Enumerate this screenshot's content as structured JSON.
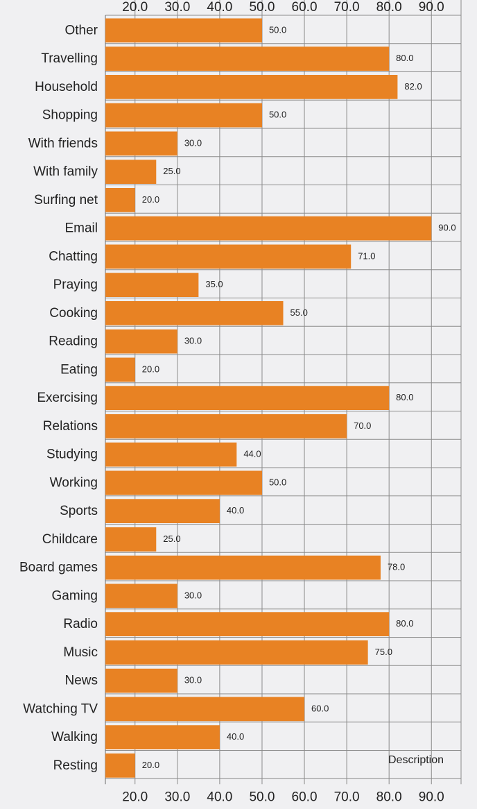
{
  "chart_data": {
    "type": "bar",
    "orientation": "horizontal",
    "categories": [
      "Other",
      "Travelling",
      "Household",
      "Shopping",
      "With friends",
      "With family",
      "Surfing net",
      "Email",
      "Chatting",
      "Praying",
      "Cooking",
      "Reading",
      "Eating",
      "Exercising",
      "Relations",
      "Studying",
      "Working",
      "Sports",
      "Childcare",
      "Board games",
      "Gaming",
      "Radio",
      "Music",
      "News",
      "Watching TV",
      "Walking",
      "Resting"
    ],
    "values": [
      50,
      80,
      82,
      50,
      30,
      25,
      20,
      90,
      71,
      35,
      55,
      30,
      20,
      80,
      70,
      44,
      50,
      40,
      25,
      78,
      30,
      80,
      75,
      30,
      60,
      40,
      20
    ],
    "value_labels": [
      "50.0",
      "80.0",
      "82.0",
      "50.0",
      "30.0",
      "25.0",
      "20.0",
      "90.0",
      "71.0",
      "35.0",
      "55.0",
      "30.0",
      "20.0",
      "80.0",
      "70.0",
      "44.0",
      "50.0",
      "40.0",
      "25.0",
      "78.0",
      "30.0",
      "80.0",
      "75.0",
      "30.0",
      "60.0",
      "40.0",
      "20.0"
    ],
    "ticks": [
      20,
      30,
      40,
      50,
      60,
      70,
      80,
      90
    ],
    "tick_labels": [
      "20.0",
      "30.0",
      "40.0",
      "50.0",
      "60.0",
      "70.0",
      "80.0",
      "90.0"
    ],
    "xlim": [
      13,
      97
    ],
    "grid": true,
    "legend_text": "Description",
    "bar_color": "#e88223"
  }
}
